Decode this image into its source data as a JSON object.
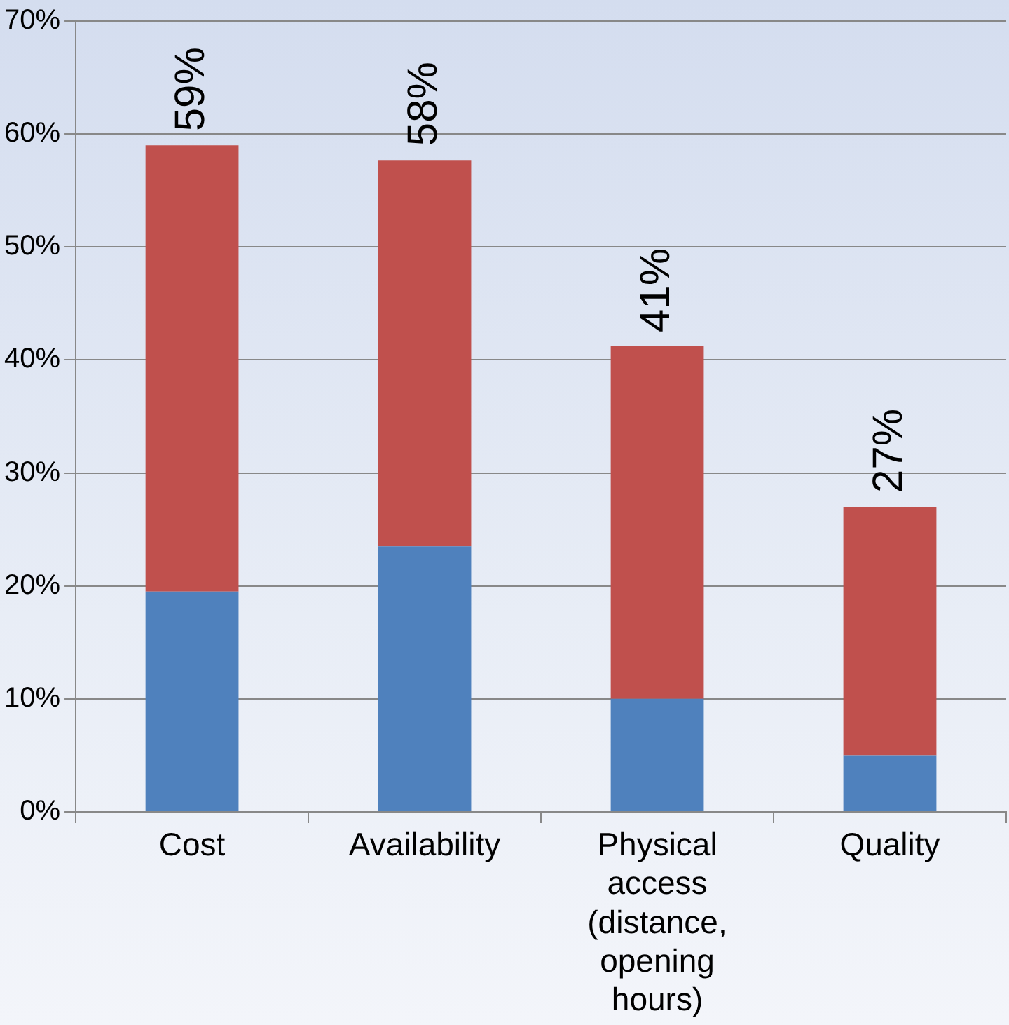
{
  "chart_data": {
    "type": "bar",
    "stacked": true,
    "categories": [
      "Cost",
      "Availability",
      "Physical access (distance, opening hours)",
      "Quality"
    ],
    "series": [
      {
        "color": "#4f81bd",
        "values": [
          19.5,
          23.5,
          10,
          5
        ]
      },
      {
        "color": "#c0504d",
        "values": [
          39.5,
          34.2,
          31.2,
          22
        ]
      }
    ],
    "totals": [
      "59%",
      "58%",
      "41%",
      "27%"
    ],
    "ylim": [
      0,
      70
    ],
    "yticks": [
      {
        "value": 0,
        "label": "0%"
      },
      {
        "value": 10,
        "label": "10%"
      },
      {
        "value": 20,
        "label": "20%"
      },
      {
        "value": 30,
        "label": "30%"
      },
      {
        "value": 40,
        "label": "40%"
      },
      {
        "value": 50,
        "label": "50%"
      },
      {
        "value": 60,
        "label": "60%"
      },
      {
        "value": 70,
        "label": "70%"
      }
    ],
    "grid": "y",
    "legend": false
  }
}
